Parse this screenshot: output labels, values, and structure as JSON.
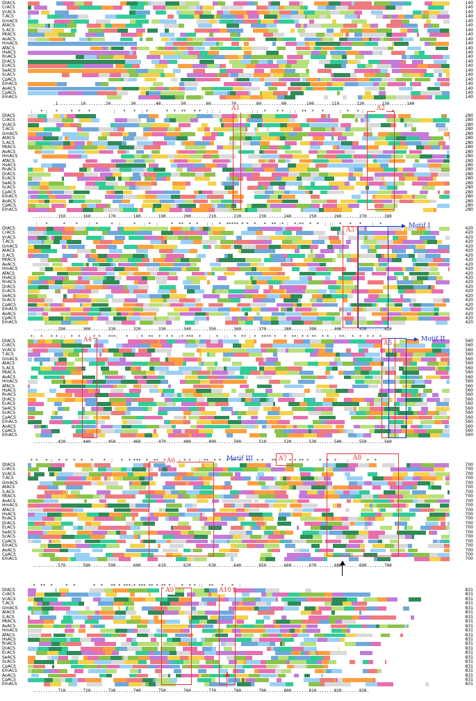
{
  "alignment": {
    "species": [
      "DtACS",
      "CrACS",
      "VcACS",
      "T.ACS",
      "GmACS",
      "AtACS",
      "S.ACS",
      "MtACS",
      "AvACS",
      "HmACS",
      "AfACS",
      "HsACS",
      "RnACS",
      "DrACS",
      "EcACS",
      "SeACS",
      "ScACS",
      "CpACS",
      "EmACS",
      "AoACS",
      "CpACS",
      "EmACS"
    ],
    "blocks": [
      {
        "end": 140,
        "ruler": "          .1.........10........20........30........40........50........60........70........80........90........100.......110.......120.......130.......140",
        "consensus": "                                                                                                         * :      :  *     * :              :  *  : *     "
      },
      {
        "end": 280,
        "ruler": "  ..........150.......160.......170.......180.......190.......200.......210.......220.......230.......240.......250.......260.......270.......280",
        "consensus": " :   * :   *     *  *   *         :   *   *  : *       *  *  **   * *  : :  :      *     : :  *    * *  : :  **  *   *      :  *   * :        :  * "
      },
      {
        "end": 420,
        "ruler": "  ..........290.......300.......310.......320.......330.......340.......350.......360.......370.......380.......390.......400.......410.......420",
        "consensus": "   :   *      *    *    :  *     *  :     *   : *  :     *  **  *  *   : :  *  ***** * *  *   *  ** :* :  *:**  *  *  : ::  *   *   *    :  * "
      },
      {
        "end": 560,
        "ruler": "  ..........430.......440.......450.......460.......470.......480.......490.......500.......510.......520.......530.......540.......550.......560",
        "consensus": " *:  *   * * ::  *  *  :  * *   ***:   *   : *  **  *  * *  :* ***  *   :  *  ::  *  ** : *  **** *   *  **: * * **  * *  : **:  *  *  * *  * "
      },
      {
        "end": 700,
        "ruler": "  ..........570.......580.......590.......600.......610.......620.......630.......640.......650.......660.......670.......680.......690.......700",
        "consensus": " * *   * :  *  *  *  *   *    *  :   *  * ***  *  **  *  *  : * *   : **  * *  * ** *  *:  * *   ** ::  * * ** *    *  *  *    : *  *  *  * "
      },
      {
        "end": 831,
        "ruler": "  ..........710.......720.......730.......740.......750.......760.......770.......780.......790.......800.......810.......820.......830.",
        "consensus": "  *  **  *     *  *       *  *   ** * ***:* *** ** * ** * :  *  * * ::  **   *   *  :                                                           "
      }
    ],
    "boxes": [
      {
        "id": "A1",
        "label": "A1"
      },
      {
        "id": "A2",
        "label": "A2"
      },
      {
        "id": "A3",
        "label": "A3"
      },
      {
        "id": "A4",
        "label": "A4"
      },
      {
        "id": "A5",
        "label": "A5"
      },
      {
        "id": "A6",
        "label": "A6"
      },
      {
        "id": "A7",
        "label": "A7"
      },
      {
        "id": "A8",
        "label": "A8"
      },
      {
        "id": "A9",
        "label": "A9"
      },
      {
        "id": "A10",
        "label": "A10"
      }
    ],
    "motifs": [
      {
        "id": "motif1",
        "label": "Motif I"
      },
      {
        "id": "motif2",
        "label": "Motif II"
      },
      {
        "id": "motif3",
        "label": "Motif III"
      }
    ],
    "colors": {
      "red_box": "#e53935",
      "blue_box": "#1a35c8",
      "arrow_red": "#e53935",
      "arrow_black": "#000000",
      "residue_palette": [
        "#33cc99",
        "#f4d24a",
        "#c27bd8",
        "#ef7b7b",
        "#6fa8dc",
        "#b7e07a",
        "#ff9f40",
        "#9ad0f5",
        "#2e8b57",
        "#d9d9d9",
        "#8bc34a",
        "#e76fb0"
      ]
    }
  }
}
